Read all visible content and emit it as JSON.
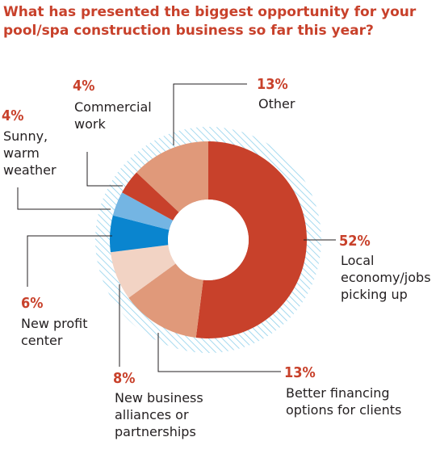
{
  "title": "What has presented the biggest opportunity for your pool/spa construction business so far this year?",
  "chart_data": {
    "type": "pie",
    "variant": "donut",
    "title": "What has presented the biggest opportunity for your pool/spa construction business so far this year?",
    "categories": [
      "Local economy/jobs picking up",
      "Better financing options for clients",
      "New business alliances or partnerships",
      "New profit center",
      "Sunny, warm weather",
      "Commercial work",
      "Other"
    ],
    "values": [
      52,
      13,
      8,
      6,
      4,
      4,
      13
    ],
    "colors": [
      "#c8412b",
      "#e0997a",
      "#f2d3c4",
      "#0a85cf",
      "#74b5e3",
      "#c8412b",
      "#e0997a"
    ],
    "labels": [
      {
        "pct": "52%",
        "lines": [
          "Local",
          "economy/jobs",
          "picking up"
        ]
      },
      {
        "pct": "13%",
        "lines": [
          "Better financing",
          "options for clients"
        ]
      },
      {
        "pct": "8%",
        "lines": [
          "New business",
          "alliances or",
          "partnerships"
        ]
      },
      {
        "pct": "6%",
        "lines": [
          "New profit",
          "center"
        ]
      },
      {
        "pct": "4%",
        "lines": [
          "Sunny,",
          "warm",
          "weather"
        ]
      },
      {
        "pct": "4%",
        "lines": [
          "Commercial",
          "work"
        ]
      },
      {
        "pct": "13%",
        "lines": [
          "Other"
        ]
      }
    ]
  }
}
